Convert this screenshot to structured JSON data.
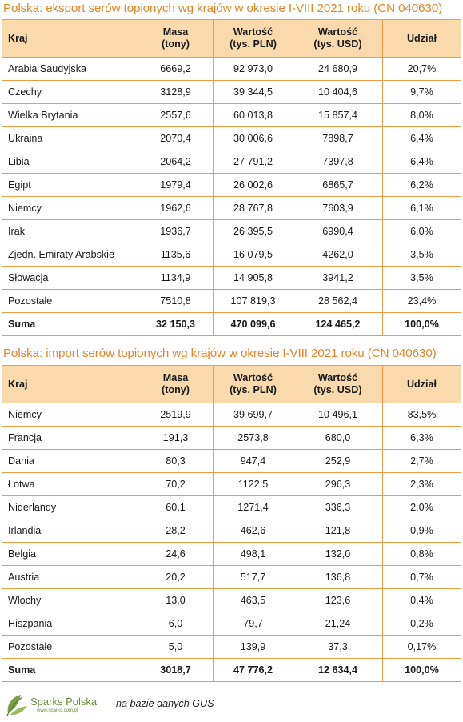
{
  "export_table": {
    "title": "Polska: eksport serów topionych wg krajów w okresie I-VIII 2021 roku (CN 040630)",
    "headers": [
      "Kraj",
      "Masa\n(tony)",
      "Wartość\n(tys. PLN)",
      "Wartość\n(tys. USD)",
      "Udział"
    ],
    "rows": [
      [
        "Arabia Saudyjska",
        "6669,2",
        "92 973,0",
        "24 680,9",
        "20,7%"
      ],
      [
        "Czechy",
        "3128,9",
        "39 344,5",
        "10 404,6",
        "9,7%"
      ],
      [
        "Wielka Brytania",
        "2557,6",
        "60 013,8",
        "15 857,4",
        "8,0%"
      ],
      [
        "Ukraina",
        "2070,4",
        "30 006,6",
        "7898,7",
        "6,4%"
      ],
      [
        "Libia",
        "2064,2",
        "27 791,2",
        "7397,8",
        "6,4%"
      ],
      [
        "Egipt",
        "1979,4",
        "26 002,6",
        "6865,7",
        "6,2%"
      ],
      [
        "Niemcy",
        "1962,6",
        "28 767,8",
        "7603,9",
        "6,1%"
      ],
      [
        "Irak",
        "1936,7",
        "26 395,5",
        "6990,4",
        "6,0%"
      ],
      [
        "Zjedn. Emiraty Arabskie",
        "1135,6",
        "16 079,5",
        "4262,0",
        "3,5%"
      ],
      [
        "Słowacja",
        "1134,9",
        "14 905,8",
        "3941,2",
        "3,5%"
      ],
      [
        "Pozostałe",
        "7510,8",
        "107 819,3",
        "28 562,4",
        "23,4%"
      ]
    ],
    "sum": [
      "Suma",
      "32 150,3",
      "470 099,6",
      "124 465,2",
      "100,0%"
    ]
  },
  "import_table": {
    "title": "Polska: import serów topionych wg krajów w okresie I-VIII 2021 roku (CN 040630)",
    "headers": [
      "Kraj",
      "Masa\n(tony)",
      "Wartość\n(tys. PLN)",
      "Wartość\n(tys. USD)",
      "Udział"
    ],
    "rows": [
      [
        "Niemcy",
        "2519,9",
        "39 699,7",
        "10 496,1",
        "83,5%"
      ],
      [
        "Francja",
        "191,3",
        "2573,8",
        "680,0",
        "6,3%"
      ],
      [
        "Dania",
        "80,3",
        "947,4",
        "252,9",
        "2,7%"
      ],
      [
        "Łotwa",
        "70,2",
        "1122,5",
        "296,3",
        "2,3%"
      ],
      [
        "Niderlandy",
        "60,1",
        "1271,4",
        "336,3",
        "2,0%"
      ],
      [
        "Irlandia",
        "28,2",
        "462,6",
        "121,8",
        "0,9%"
      ],
      [
        "Belgia",
        "24,6",
        "498,1",
        "132,0",
        "0,8%"
      ],
      [
        "Austria",
        "20,2",
        "517,7",
        "136,8",
        "0,7%"
      ],
      [
        "Włochy",
        "13,0",
        "463,5",
        "123,6",
        "0,4%"
      ],
      [
        "Hiszpania",
        "6,0",
        "79,7",
        "21,24",
        "0,2%"
      ],
      [
        "Pozostałe",
        "5,0",
        "139,9",
        "37,3",
        "0,17%"
      ]
    ],
    "sum": [
      "Suma",
      "3018,7",
      "47 776,2",
      "12 634,4",
      "100,0%"
    ]
  },
  "footer": {
    "logo_name": "Sparks Polska",
    "logo_url": "www.sparks.com.pl",
    "source": "na bazie danych GUS"
  },
  "colors": {
    "title": "#e3862a",
    "header_bg": "#fad9ad",
    "border": "#ee9d45",
    "logo": "#6a8f3e"
  }
}
